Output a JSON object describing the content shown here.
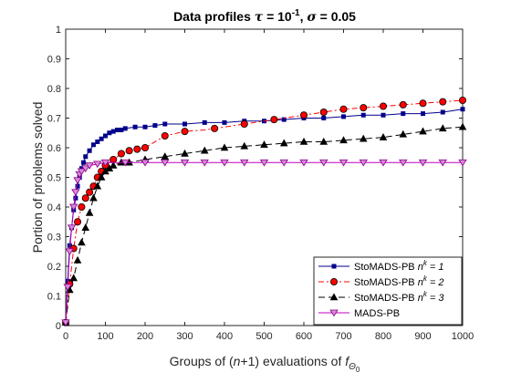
{
  "chart_data": {
    "type": "line",
    "title_parts": {
      "prefix": "Data profiles ",
      "tau_symbol": "τ",
      "tau_eq": " = 10",
      "tau_exp": "-1",
      "sep": ", ",
      "sigma_symbol": "σ",
      "sigma_eq": " = 0.05"
    },
    "xlabel_parts": {
      "a": "Groups of (",
      "n": "n",
      "b": "+1) evaluations of ",
      "f": "f",
      "sub": "Θ",
      "subsub": "0"
    },
    "ylabel": "Portion of problems solved",
    "xlim": [
      0,
      1000
    ],
    "ylim": [
      0,
      1
    ],
    "xticks": [
      "0",
      "100",
      "200",
      "300",
      "400",
      "500",
      "600",
      "700",
      "800",
      "900",
      "1000"
    ],
    "yticks": [
      "0",
      "0.1",
      "0.2",
      "0.3",
      "0.4",
      "0.5",
      "0.6",
      "0.7",
      "0.8",
      "0.9",
      "1"
    ],
    "legend_position": "bottom-right",
    "series": [
      {
        "key": "s1",
        "label_main": "StoMADS-PB ",
        "label_sym": "n",
        "label_sup": "k",
        "label_tail": " = 1",
        "color": "#00008b",
        "dash": "",
        "marker": "square",
        "x": [
          0,
          5,
          10,
          15,
          20,
          25,
          30,
          35,
          40,
          45,
          50,
          60,
          70,
          80,
          90,
          100,
          110,
          120,
          130,
          140,
          150,
          175,
          200,
          225,
          250,
          300,
          350,
          400,
          450,
          500,
          550,
          600,
          650,
          700,
          750,
          800,
          850,
          900,
          950,
          1000
        ],
        "y": [
          0.01,
          0.15,
          0.27,
          0.33,
          0.39,
          0.43,
          0.47,
          0.5,
          0.53,
          0.55,
          0.57,
          0.59,
          0.61,
          0.62,
          0.63,
          0.64,
          0.65,
          0.655,
          0.66,
          0.66,
          0.665,
          0.67,
          0.67,
          0.675,
          0.68,
          0.68,
          0.685,
          0.685,
          0.69,
          0.69,
          0.695,
          0.7,
          0.7,
          0.705,
          0.71,
          0.71,
          0.715,
          0.715,
          0.72,
          0.73
        ],
        "marker_x": [
          0,
          5,
          10,
          15,
          20,
          25,
          30,
          35,
          40,
          45,
          50,
          60,
          70,
          80,
          90,
          100,
          110,
          120,
          130,
          140,
          150,
          175,
          200,
          225,
          250,
          300,
          350,
          400,
          450,
          500,
          550,
          600,
          650,
          700,
          750,
          800,
          850,
          900,
          950,
          1000
        ]
      },
      {
        "key": "s2",
        "label_main": "StoMADS-PB ",
        "label_sym": "n",
        "label_sup": "k",
        "label_tail": " = 2",
        "color": "#ff0000",
        "dash": "6 3 2 3",
        "marker": "circle",
        "x": [
          0,
          10,
          20,
          30,
          40,
          50,
          60,
          70,
          80,
          90,
          100,
          120,
          140,
          160,
          180,
          200,
          250,
          300,
          350,
          375,
          400,
          450,
          500,
          550,
          600,
          650,
          700,
          750,
          800,
          850,
          900,
          950,
          1000
        ],
        "y": [
          0.01,
          0.14,
          0.26,
          0.35,
          0.4,
          0.43,
          0.45,
          0.47,
          0.5,
          0.52,
          0.54,
          0.56,
          0.58,
          0.59,
          0.595,
          0.6,
          0.64,
          0.655,
          0.66,
          0.665,
          0.67,
          0.68,
          0.69,
          0.7,
          0.71,
          0.72,
          0.73,
          0.735,
          0.74,
          0.745,
          0.75,
          0.755,
          0.76
        ],
        "marker_x": [
          0,
          10,
          20,
          30,
          40,
          50,
          60,
          70,
          80,
          90,
          100,
          120,
          140,
          160,
          180,
          200,
          250,
          300,
          375,
          450,
          525,
          600,
          650,
          700,
          750,
          800,
          850,
          900,
          950,
          1000
        ]
      },
      {
        "key": "s3",
        "label_main": "StoMADS-PB ",
        "label_sym": "n",
        "label_sup": "k",
        "label_tail": " = 3",
        "color": "#000000",
        "dash": "7 4",
        "marker": "triangle",
        "x": [
          0,
          10,
          20,
          30,
          40,
          50,
          60,
          70,
          80,
          90,
          100,
          110,
          120,
          140,
          160,
          200,
          250,
          300,
          350,
          400,
          450,
          500,
          550,
          600,
          650,
          700,
          750,
          800,
          850,
          900,
          950,
          1000
        ],
        "y": [
          0.01,
          0.12,
          0.16,
          0.22,
          0.28,
          0.33,
          0.38,
          0.43,
          0.47,
          0.5,
          0.52,
          0.53,
          0.54,
          0.55,
          0.55,
          0.56,
          0.57,
          0.58,
          0.59,
          0.6,
          0.605,
          0.61,
          0.615,
          0.62,
          0.62,
          0.625,
          0.63,
          0.635,
          0.645,
          0.655,
          0.665,
          0.67
        ],
        "marker_x": [
          0,
          10,
          20,
          30,
          40,
          50,
          60,
          70,
          80,
          90,
          100,
          110,
          120,
          140,
          160,
          200,
          250,
          300,
          350,
          400,
          450,
          500,
          550,
          600,
          650,
          700,
          750,
          800,
          850,
          900,
          950,
          1000
        ]
      },
      {
        "key": "s4",
        "label_main": "MADS-PB",
        "label_sym": "",
        "label_sup": "",
        "label_tail": "",
        "color": "#c000c0",
        "dash": "",
        "marker": "triangle-down",
        "x": [
          0,
          5,
          10,
          15,
          20,
          25,
          30,
          35,
          40,
          50,
          60,
          80,
          100,
          150,
          200,
          300,
          1000
        ],
        "y": [
          0.01,
          0.13,
          0.25,
          0.33,
          0.4,
          0.45,
          0.49,
          0.51,
          0.52,
          0.53,
          0.54,
          0.545,
          0.55,
          0.55,
          0.55,
          0.55,
          0.55
        ],
        "marker_x": [
          0,
          5,
          10,
          15,
          20,
          25,
          30,
          35,
          40,
          50,
          60,
          80,
          100,
          150,
          200,
          250,
          300,
          350,
          400,
          450,
          500,
          550,
          600,
          650,
          700,
          750,
          800,
          850,
          900,
          950,
          1000
        ]
      }
    ]
  }
}
